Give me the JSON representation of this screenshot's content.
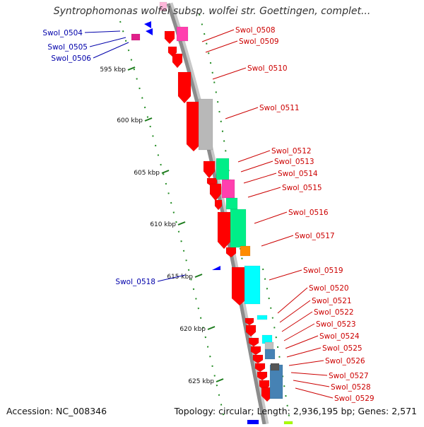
{
  "title": "Syntrophomonas wolfei subsp. wolfei str. Goettingen, complet...",
  "footer": {
    "accession": "Accession: NC_008346",
    "summary": "Topology: circular; Length: 2,936,195 bp; Genes: 2,571"
  },
  "colors": {
    "backbone": "#8c8c8c",
    "forward_label": "#cc0000",
    "reverse_label": "#0000aa",
    "tick_dots": "#228b22"
  },
  "scale_ticks": [
    {
      "label": "595 kbp"
    },
    {
      "label": "600 kbp"
    },
    {
      "label": "605 kbp"
    },
    {
      "label": "610 kbp"
    },
    {
      "label": "615 kbp"
    },
    {
      "label": "620 kbp"
    },
    {
      "label": "625 kbp"
    }
  ],
  "left_labels": [
    {
      "text": "Swol_0504"
    },
    {
      "text": "Swol_0505"
    },
    {
      "text": "Swol_0506"
    },
    {
      "text": "Swol_0518"
    }
  ],
  "right_labels": [
    {
      "text": "Swol_0508"
    },
    {
      "text": "Swol_0509"
    },
    {
      "text": "Swol_0510"
    },
    {
      "text": "Swol_0511"
    },
    {
      "text": "Swol_0512"
    },
    {
      "text": "Swol_0513"
    },
    {
      "text": "Swol_0514"
    },
    {
      "text": "Swol_0515"
    },
    {
      "text": "Swol_0516"
    },
    {
      "text": "Swol_0517"
    },
    {
      "text": "Swol_0519"
    },
    {
      "text": "Swol_0520"
    },
    {
      "text": "Swol_0521"
    },
    {
      "text": "Swol_0522"
    },
    {
      "text": "Swol_0523"
    },
    {
      "text": "Swol_0524"
    },
    {
      "text": "Swol_0525"
    },
    {
      "text": "Swol_0526"
    },
    {
      "text": "Swol_0527"
    },
    {
      "text": "Swol_0528"
    },
    {
      "text": "Swol_0529"
    }
  ]
}
